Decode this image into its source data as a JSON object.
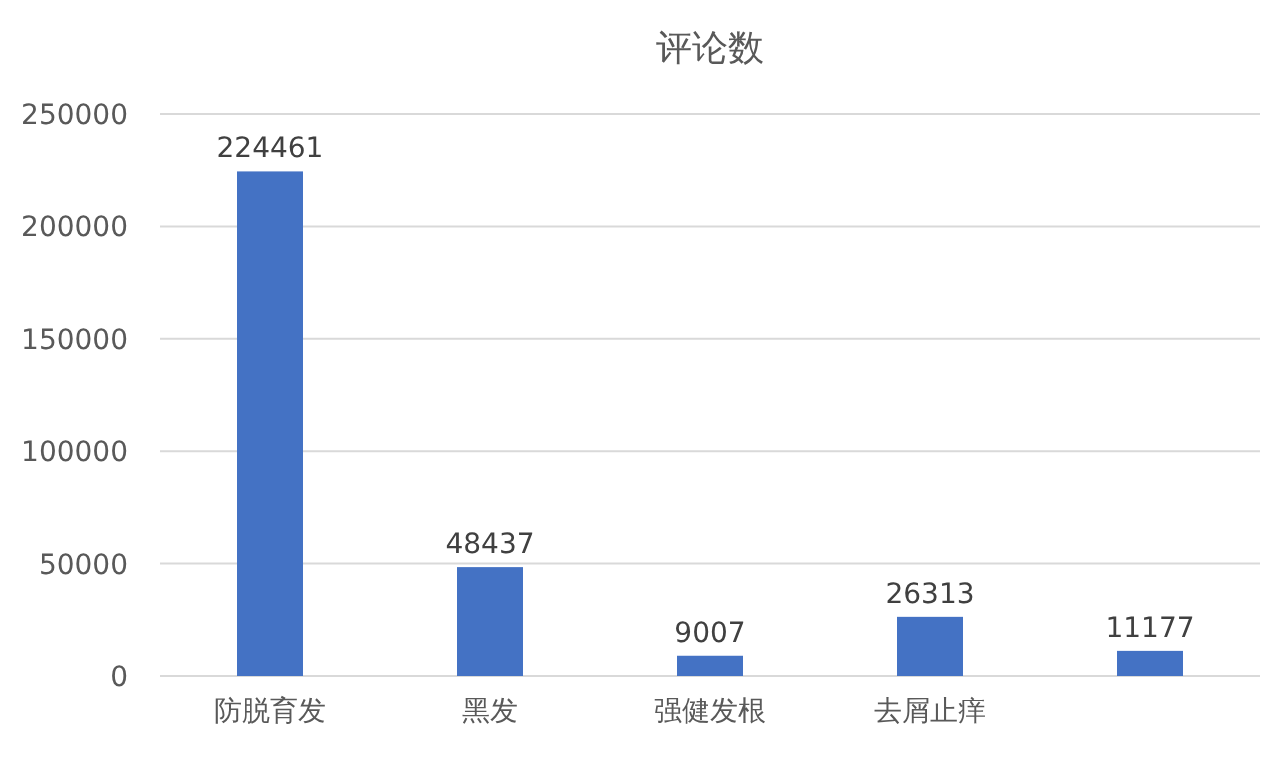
{
  "chart_data": {
    "type": "bar",
    "title": "评论数",
    "categories": [
      "防脱育发",
      "黑发",
      "强健发根",
      "去屑止痒",
      null
    ],
    "values": [
      224461,
      48437,
      9007,
      26313,
      11177
    ],
    "color": "#4472c4",
    "ylim": [
      0,
      250000
    ],
    "yticks": [
      0,
      50000,
      100000,
      150000,
      200000,
      250000
    ],
    "grid": "y",
    "data_labels": true
  }
}
